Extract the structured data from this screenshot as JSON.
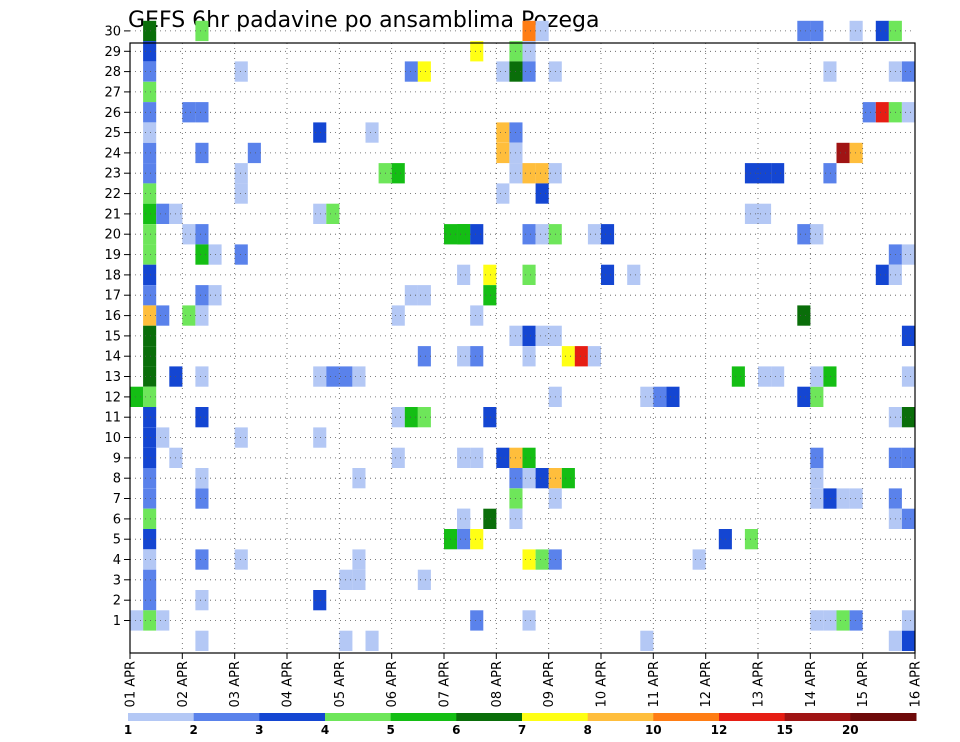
{
  "chart_data": {
    "type": "heatmap",
    "title": "GEFS 6hr padavine po ansamblima Pozega",
    "xlabel": "",
    "ylabel": "",
    "x_ticks": [
      "01 APR",
      "02 APR",
      "03 APR",
      "04 APR",
      "05 APR",
      "06 APR",
      "07 APR",
      "08 APR",
      "09 APR",
      "10 APR",
      "11 APR",
      "12 APR",
      "13 APR",
      "14 APR",
      "15 APR",
      "16 APR"
    ],
    "x_range_days": [
      0,
      15
    ],
    "y_members": [
      1,
      30
    ],
    "y_ticks": [
      1,
      2,
      3,
      4,
      5,
      6,
      7,
      8,
      9,
      10,
      11,
      12,
      13,
      14,
      15,
      16,
      17,
      18,
      19,
      20,
      21,
      22,
      23,
      24,
      25,
      26,
      27,
      28,
      29,
      30
    ],
    "grid": true,
    "colorbar": {
      "placement": "bottom",
      "labels": [
        "1",
        "2",
        "3",
        "4",
        "5",
        "6",
        "7",
        "8",
        "10",
        "12",
        "15",
        "20"
      ],
      "bounds": [
        1,
        2,
        3,
        4,
        5,
        6,
        7,
        8,
        10,
        12,
        15,
        20
      ],
      "colors": [
        "#b4c8f5",
        "#5a82eb",
        "#1446d2",
        "#6ee65a",
        "#14be14",
        "#0a6e0a",
        "#ffff14",
        "#ffbe3c",
        "#ff7d14",
        "#e61e14",
        "#a01414",
        "#6e0a0a"
      ]
    },
    "cells_unit": "[day, ensemble member, precipitation mm]",
    "cells": [
      [
        0.25,
        30,
        6.5
      ],
      [
        0.25,
        29,
        3.5
      ],
      [
        0.25,
        28,
        2.5
      ],
      [
        0.25,
        27,
        4.5
      ],
      [
        0.25,
        26,
        2.5
      ],
      [
        0.25,
        25,
        1.5
      ],
      [
        0.25,
        24,
        2.5
      ],
      [
        0.25,
        23,
        2.5
      ],
      [
        0.25,
        22,
        4.5
      ],
      [
        0.25,
        21,
        5.5
      ],
      [
        0.25,
        20,
        4.5
      ],
      [
        0.25,
        19,
        4.5
      ],
      [
        0.25,
        18,
        3.5
      ],
      [
        0.25,
        17,
        2.5
      ],
      [
        0.25,
        16,
        8.5
      ],
      [
        0.25,
        15,
        6.5
      ],
      [
        0.25,
        14,
        6.5
      ],
      [
        0.25,
        13,
        6.5
      ],
      [
        0.25,
        12,
        4.5
      ],
      [
        0.25,
        11,
        3.5
      ],
      [
        0.25,
        10,
        3.5
      ],
      [
        0.25,
        9,
        3.5
      ],
      [
        0.25,
        8,
        2.5
      ],
      [
        0.25,
        7,
        2.5
      ],
      [
        0.25,
        6,
        4.5
      ],
      [
        0.25,
        5,
        3.5
      ],
      [
        0.25,
        4,
        1.5
      ],
      [
        0.25,
        3,
        2.5
      ],
      [
        0.25,
        2,
        2.5
      ],
      [
        0.25,
        1,
        4.5
      ],
      [
        0.0,
        12,
        5.5
      ],
      [
        0.0,
        1,
        1.5
      ],
      [
        0.5,
        21,
        2.5
      ],
      [
        0.75,
        21,
        1.5
      ],
      [
        0.5,
        16,
        2.5
      ],
      [
        0.5,
        10,
        1.5
      ],
      [
        0.5,
        1,
        1.5
      ],
      [
        0.75,
        13,
        3.5
      ],
      [
        0.75,
        9,
        1.5
      ],
      [
        1.0,
        20,
        1.5
      ],
      [
        1.0,
        16,
        4.5
      ],
      [
        1.25,
        30,
        4.5
      ],
      [
        1.0,
        26,
        2.5
      ],
      [
        1.25,
        26,
        2.5
      ],
      [
        1.25,
        24,
        2.5
      ],
      [
        1.25,
        20,
        2.5
      ],
      [
        1.25,
        19,
        5.5
      ],
      [
        1.5,
        19,
        1.5
      ],
      [
        1.25,
        17,
        2.5
      ],
      [
        1.5,
        17,
        1.5
      ],
      [
        1.25,
        16,
        1.5
      ],
      [
        1.25,
        13,
        1.5
      ],
      [
        1.25,
        11,
        3.5
      ],
      [
        1.25,
        8,
        1.5
      ],
      [
        1.25,
        7,
        2.5
      ],
      [
        1.25,
        4,
        2.5
      ],
      [
        1.25,
        2,
        1.5
      ],
      [
        1.25,
        0,
        1.5
      ],
      [
        2.0,
        28,
        1.5
      ],
      [
        2.25,
        24,
        2.5
      ],
      [
        2.0,
        23,
        1.5
      ],
      [
        2.0,
        22,
        1.5
      ],
      [
        2.0,
        19,
        2.5
      ],
      [
        2.0,
        10,
        1.5
      ],
      [
        2.0,
        4,
        1.5
      ],
      [
        3.5,
        25,
        3.5
      ],
      [
        3.5,
        21,
        1.5
      ],
      [
        3.75,
        21,
        4.5
      ],
      [
        3.5,
        13,
        1.5
      ],
      [
        3.75,
        13,
        2.5
      ],
      [
        4.0,
        13,
        2.5
      ],
      [
        4.25,
        13,
        1.5
      ],
      [
        3.5,
        10,
        1.5
      ],
      [
        4.25,
        8,
        1.5
      ],
      [
        4.0,
        3,
        1.5
      ],
      [
        4.25,
        3,
        1.5
      ],
      [
        4.25,
        4,
        1.5
      ],
      [
        3.5,
        2,
        3.5
      ],
      [
        4.0,
        0,
        1.5
      ],
      [
        4.5,
        25,
        1.5
      ],
      [
        4.5,
        0,
        1.5
      ],
      [
        5.25,
        28,
        2.5
      ],
      [
        5.5,
        28,
        7.5
      ],
      [
        4.75,
        23,
        4.5
      ],
      [
        5.0,
        23,
        5.5
      ],
      [
        5.25,
        17,
        1.5
      ],
      [
        5.5,
        17,
        1.5
      ],
      [
        5.0,
        16,
        1.5
      ],
      [
        5.5,
        14,
        2.5
      ],
      [
        5.0,
        11,
        1.5
      ],
      [
        5.25,
        11,
        5.5
      ],
      [
        5.5,
        11,
        4.5
      ],
      [
        5.0,
        9,
        1.5
      ],
      [
        5.5,
        3,
        1.5
      ],
      [
        6.5,
        29,
        7.5
      ],
      [
        6.25,
        20,
        5.5
      ],
      [
        6.0,
        20,
        5.5
      ],
      [
        6.25,
        20,
        5.5
      ],
      [
        6.5,
        20,
        3.5
      ],
      [
        6.25,
        18,
        1.5
      ],
      [
        6.5,
        16,
        1.5
      ],
      [
        6.25,
        14,
        1.5
      ],
      [
        6.5,
        14,
        2.5
      ],
      [
        6.25,
        9,
        1.5
      ],
      [
        6.5,
        9,
        1.5
      ],
      [
        6.25,
        6,
        1.5
      ],
      [
        6.0,
        5,
        5.5
      ],
      [
        6.25,
        5,
        2.5
      ],
      [
        6.5,
        5,
        7.5
      ],
      [
        6.5,
        1,
        2.5
      ],
      [
        6.25,
        6,
        1.5
      ],
      [
        6.75,
        18,
        7.5
      ],
      [
        6.75,
        17,
        5.5
      ],
      [
        6.75,
        11,
        3.5
      ],
      [
        6.75,
        6,
        6.5
      ],
      [
        7.5,
        30,
        11.5
      ],
      [
        7.75,
        30,
        1.5
      ],
      [
        7.25,
        29,
        4.5
      ],
      [
        7.5,
        29,
        1.5
      ],
      [
        7.0,
        28,
        1.5
      ],
      [
        7.25,
        28,
        6.5
      ],
      [
        7.5,
        28,
        2.5
      ],
      [
        8.0,
        28,
        1.5
      ],
      [
        7.0,
        25,
        9.5
      ],
      [
        7.25,
        25,
        2.5
      ],
      [
        7.0,
        24,
        8.5
      ],
      [
        7.25,
        24,
        1.5
      ],
      [
        7.25,
        23,
        1.5
      ],
      [
        7.5,
        23,
        9.5
      ],
      [
        7.75,
        23,
        9.5
      ],
      [
        8.0,
        23,
        1.5
      ],
      [
        7.0,
        22,
        1.5
      ],
      [
        7.75,
        22,
        3.5
      ],
      [
        7.5,
        20,
        2.5
      ],
      [
        7.75,
        20,
        1.5
      ],
      [
        8.0,
        20,
        4.5
      ],
      [
        7.5,
        18,
        4.5
      ],
      [
        7.25,
        15,
        1.5
      ],
      [
        7.5,
        15,
        3.5
      ],
      [
        7.75,
        15,
        1.5
      ],
      [
        8.0,
        15,
        1.5
      ],
      [
        7.5,
        14,
        1.5
      ],
      [
        8.25,
        14,
        7.5
      ],
      [
        8.5,
        14,
        12.5
      ],
      [
        8.75,
        14,
        1.5
      ],
      [
        8.0,
        12,
        1.5
      ],
      [
        7.0,
        9,
        3.5
      ],
      [
        7.25,
        9,
        8.5
      ],
      [
        7.5,
        9,
        5.5
      ],
      [
        7.25,
        8,
        2.5
      ],
      [
        7.5,
        8,
        1.5
      ],
      [
        7.75,
        8,
        3.5
      ],
      [
        8.0,
        8,
        8.5
      ],
      [
        8.25,
        8,
        5.5
      ],
      [
        7.25,
        7,
        4.5
      ],
      [
        8.0,
        7,
        1.5
      ],
      [
        7.25,
        6,
        1.5
      ],
      [
        7.5,
        4,
        7.5
      ],
      [
        7.75,
        4,
        4.5
      ],
      [
        8.0,
        4,
        2.5
      ],
      [
        7.5,
        1,
        1.5
      ],
      [
        8.75,
        20,
        1.5
      ],
      [
        9.0,
        20,
        3.5
      ],
      [
        9.0,
        18,
        3.5
      ],
      [
        9.5,
        18,
        1.5
      ],
      [
        9.75,
        12,
        1.5
      ],
      [
        10.0,
        12,
        2.5
      ],
      [
        10.25,
        12,
        3.5
      ],
      [
        9.75,
        0,
        1.5
      ],
      [
        10.75,
        4,
        1.5
      ],
      [
        11.25,
        5,
        3.5
      ],
      [
        11.75,
        5,
        4.5
      ],
      [
        11.75,
        23,
        3.5
      ],
      [
        12.0,
        23,
        3.5
      ],
      [
        12.25,
        23,
        3.5
      ],
      [
        11.75,
        21,
        1.5
      ],
      [
        12.0,
        21,
        1.5
      ],
      [
        11.5,
        13,
        5.5
      ],
      [
        12.0,
        13,
        1.5
      ],
      [
        12.25,
        13,
        1.5
      ],
      [
        12.75,
        30,
        2.5
      ],
      [
        13.0,
        30,
        2.5
      ],
      [
        12.75,
        20,
        2.5
      ],
      [
        13.0,
        20,
        1.5
      ],
      [
        12.75,
        16,
        6.5
      ],
      [
        12.75,
        12,
        3.5
      ],
      [
        13.0,
        12,
        4.5
      ],
      [
        13.0,
        13,
        1.5
      ],
      [
        13.25,
        13,
        5.5
      ],
      [
        13.0,
        9,
        2.5
      ],
      [
        13.0,
        8,
        1.5
      ],
      [
        13.0,
        7,
        1.5
      ],
      [
        13.25,
        7,
        3.5
      ],
      [
        13.5,
        7,
        1.5
      ],
      [
        13.75,
        7,
        1.5
      ],
      [
        13.0,
        1,
        1.5
      ],
      [
        13.25,
        1,
        1.5
      ],
      [
        13.5,
        1,
        4.5
      ],
      [
        13.75,
        1,
        2.5
      ],
      [
        13.25,
        28,
        1.5
      ],
      [
        13.25,
        23,
        2.5
      ],
      [
        13.5,
        24,
        15.5
      ],
      [
        13.75,
        24,
        9.5
      ],
      [
        13.75,
        30,
        1.5
      ],
      [
        14.0,
        26,
        2.5
      ],
      [
        14.25,
        26,
        12.5
      ],
      [
        14.5,
        26,
        4.5
      ],
      [
        14.75,
        26,
        1.5
      ],
      [
        14.25,
        30,
        3.5
      ],
      [
        14.5,
        30,
        4.5
      ],
      [
        14.5,
        28,
        1.5
      ],
      [
        14.75,
        28,
        2.5
      ],
      [
        14.5,
        19,
        2.5
      ],
      [
        14.75,
        19,
        1.5
      ],
      [
        14.25,
        18,
        3.5
      ],
      [
        14.5,
        18,
        1.5
      ],
      [
        14.75,
        15,
        3.5
      ],
      [
        14.75,
        13,
        1.5
      ],
      [
        14.5,
        11,
        1.5
      ],
      [
        14.75,
        11,
        6.5
      ],
      [
        14.5,
        9,
        2.5
      ],
      [
        14.75,
        9,
        2.5
      ],
      [
        14.5,
        7,
        2.5
      ],
      [
        14.5,
        6,
        1.5
      ],
      [
        14.75,
        6,
        2.5
      ],
      [
        14.75,
        1,
        1.5
      ],
      [
        14.75,
        0,
        3.5
      ],
      [
        14.5,
        0,
        1.5
      ]
    ]
  }
}
